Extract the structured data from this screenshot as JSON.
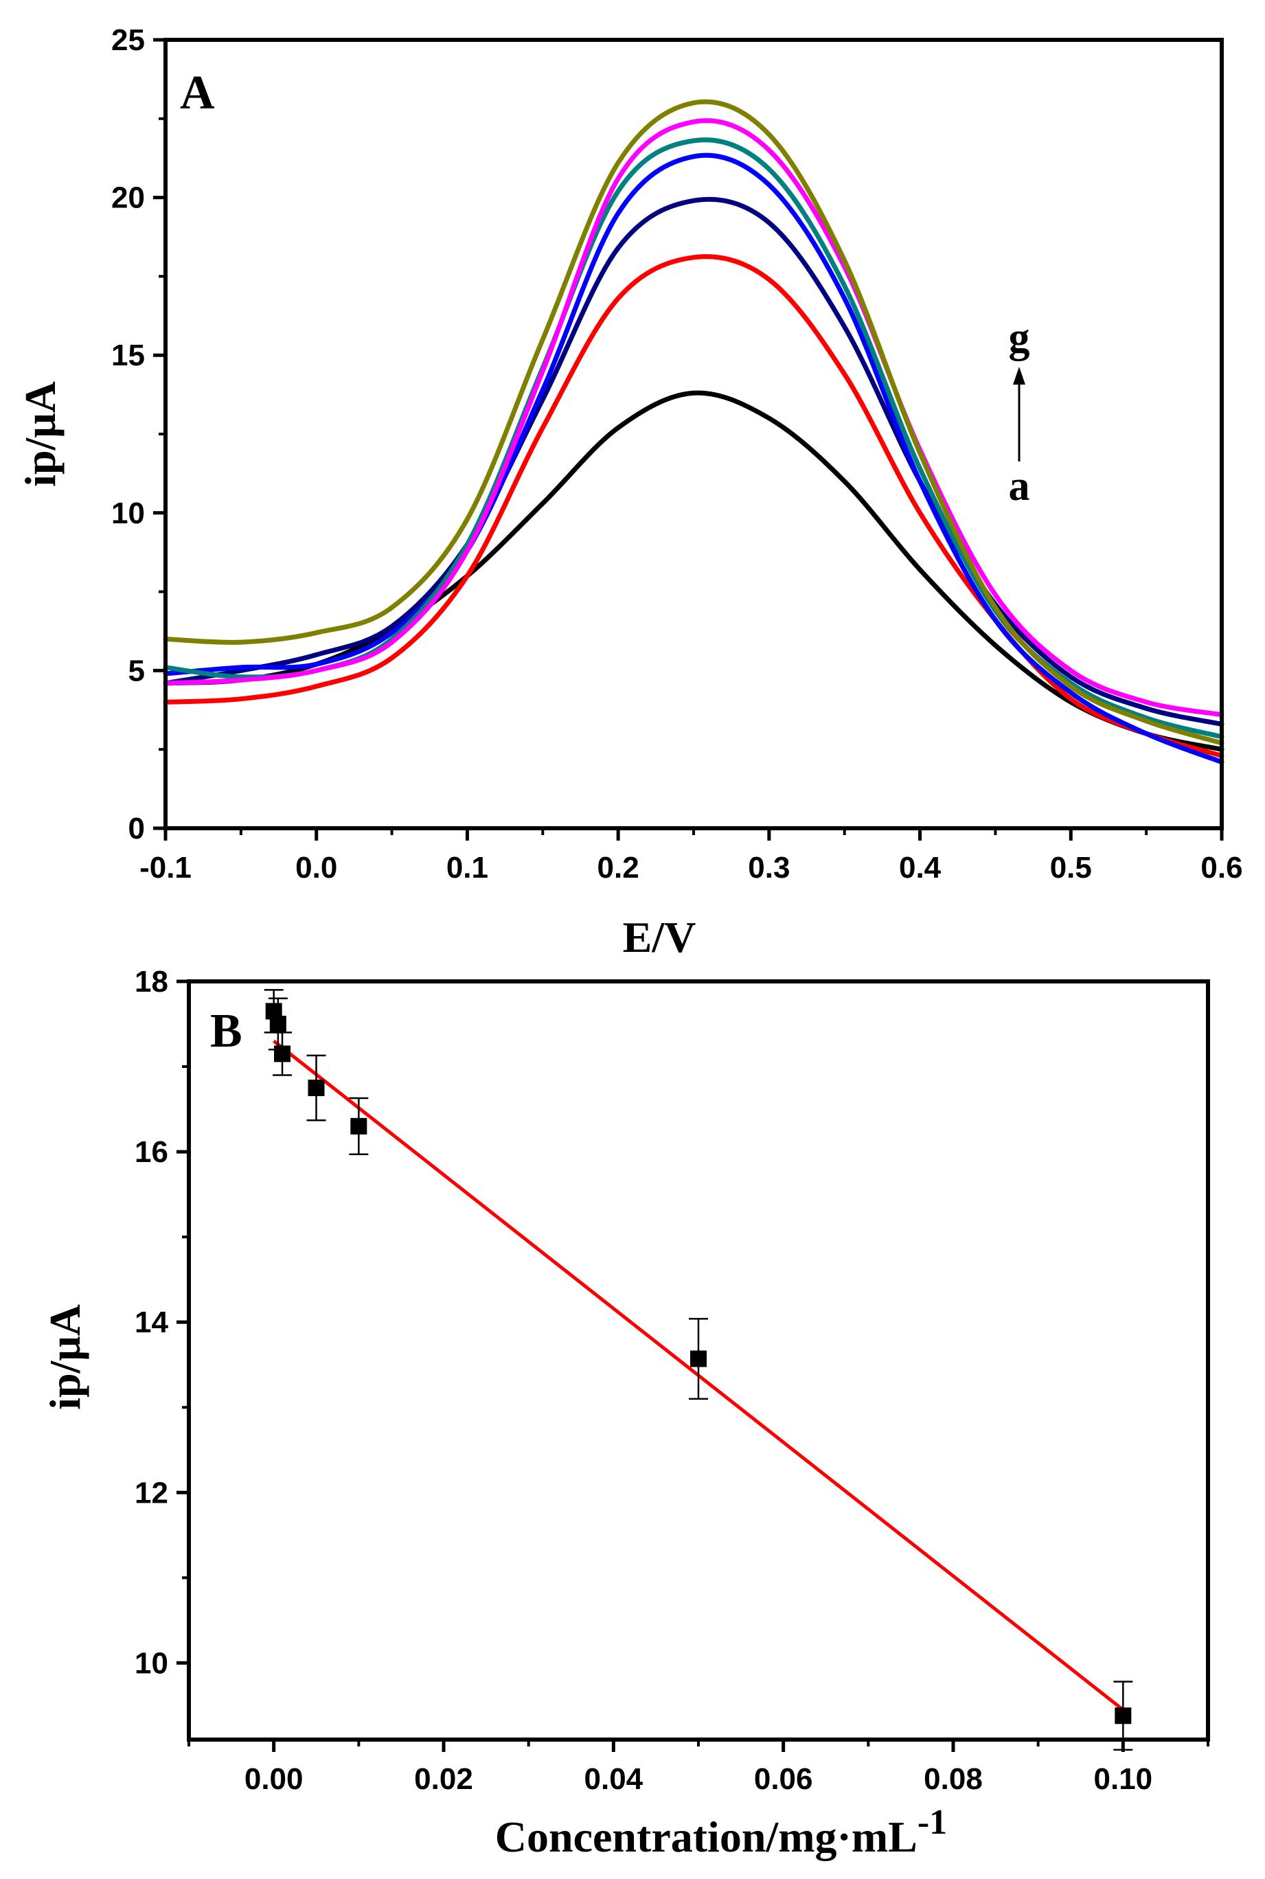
{
  "chart_data": [
    {
      "panel_label": "A",
      "type": "line",
      "xlabel": "E/V",
      "ylabel": "ip/μA",
      "xlim": [
        -0.1,
        0.6
      ],
      "ylim": [
        0,
        25
      ],
      "xticks": [
        "-0.1",
        "0.0",
        "0.1",
        "0.2",
        "0.3",
        "0.4",
        "0.5",
        "0.6"
      ],
      "yticks": [
        "0",
        "5",
        "10",
        "15",
        "20",
        "25"
      ],
      "grid": false,
      "annotations": {
        "top": "g",
        "bottom": "a"
      },
      "series": [
        {
          "color": "#000000",
          "x": [
            -0.1,
            -0.05,
            0.0,
            0.05,
            0.1,
            0.15,
            0.2,
            0.25,
            0.3,
            0.35,
            0.4,
            0.45,
            0.5,
            0.55,
            0.6
          ],
          "y": [
            4.6,
            4.7,
            5.2,
            6.3,
            8.0,
            10.3,
            12.7,
            13.8,
            13.0,
            11.0,
            8.2,
            5.8,
            4.0,
            3.0,
            2.5
          ]
        },
        {
          "color": "#ff0000",
          "x": [
            -0.1,
            -0.05,
            0.0,
            0.05,
            0.1,
            0.15,
            0.2,
            0.25,
            0.3,
            0.35,
            0.4,
            0.45,
            0.5,
            0.55,
            0.6
          ],
          "y": [
            4.0,
            4.1,
            4.5,
            5.4,
            8.0,
            12.7,
            16.8,
            18.1,
            17.4,
            14.4,
            10.0,
            6.6,
            4.1,
            3.0,
            2.3
          ]
        },
        {
          "color": "#000080",
          "x": [
            -0.1,
            -0.05,
            0.0,
            0.05,
            0.1,
            0.15,
            0.2,
            0.25,
            0.3,
            0.35,
            0.4,
            0.45,
            0.5,
            0.55,
            0.6
          ],
          "y": [
            4.6,
            5.0,
            5.5,
            6.4,
            9.0,
            13.6,
            18.4,
            19.9,
            19.2,
            15.9,
            11.0,
            7.1,
            4.8,
            3.8,
            3.3
          ]
        },
        {
          "color": "#0000ff",
          "x": [
            -0.1,
            -0.05,
            0.0,
            0.05,
            0.1,
            0.15,
            0.2,
            0.25,
            0.3,
            0.35,
            0.4,
            0.45,
            0.5,
            0.55,
            0.6
          ],
          "y": [
            4.9,
            5.1,
            5.2,
            6.2,
            8.8,
            13.9,
            19.5,
            21.3,
            20.4,
            16.8,
            11.0,
            6.6,
            4.3,
            3.0,
            2.1
          ]
        },
        {
          "color": "#008080",
          "x": [
            -0.1,
            -0.05,
            0.0,
            0.05,
            0.1,
            0.15,
            0.2,
            0.25,
            0.3,
            0.35,
            0.4,
            0.45,
            0.5,
            0.55,
            0.6
          ],
          "y": [
            5.1,
            4.8,
            5.0,
            6.0,
            9.0,
            14.6,
            20.2,
            21.8,
            20.9,
            17.2,
            11.4,
            6.9,
            4.6,
            3.5,
            2.9
          ]
        },
        {
          "color": "#ff00ff",
          "x": [
            -0.1,
            -0.05,
            0.0,
            0.05,
            0.1,
            0.15,
            0.2,
            0.25,
            0.3,
            0.35,
            0.4,
            0.45,
            0.5,
            0.55,
            0.6
          ],
          "y": [
            4.6,
            4.7,
            5.0,
            5.9,
            8.8,
            14.5,
            20.6,
            22.4,
            21.5,
            17.8,
            12.0,
            7.4,
            5.0,
            4.0,
            3.6
          ]
        },
        {
          "color": "#808000",
          "x": [
            -0.1,
            -0.05,
            0.0,
            0.05,
            0.1,
            0.15,
            0.2,
            0.25,
            0.3,
            0.35,
            0.4,
            0.45,
            0.5,
            0.55,
            0.6
          ],
          "y": [
            6.0,
            5.9,
            6.2,
            7.0,
            9.8,
            15.5,
            21.1,
            23.0,
            22.0,
            18.0,
            11.9,
            7.0,
            4.5,
            3.4,
            2.7
          ]
        }
      ]
    },
    {
      "panel_label": "B",
      "type": "scatter",
      "xlabel": "Concentration/mg·mL",
      "xlabel_superscript": "-1",
      "ylabel": "ip/μA",
      "xlim": [
        -0.01,
        0.11
      ],
      "ylim": [
        9.1,
        18
      ],
      "xticks": [
        "0.00",
        "0.02",
        "0.04",
        "0.06",
        "0.08",
        "0.10"
      ],
      "yticks": [
        "10",
        "12",
        "14",
        "16",
        "18"
      ],
      "grid": false,
      "points": [
        {
          "x": 0.0,
          "y": 17.65,
          "err": 0.25
        },
        {
          "x": 0.0005,
          "y": 17.5,
          "err": 0.3
        },
        {
          "x": 0.001,
          "y": 17.15,
          "err": 0.25
        },
        {
          "x": 0.005,
          "y": 16.75,
          "err": 0.38
        },
        {
          "x": 0.01,
          "y": 16.3,
          "err": 0.33
        },
        {
          "x": 0.05,
          "y": 13.57,
          "err": 0.47
        },
        {
          "x": 0.1,
          "y": 9.38,
          "err": 0.4
        }
      ],
      "fit_line": {
        "color": "#ff0000",
        "x": [
          0.0,
          0.1
        ],
        "y": [
          17.3,
          9.45
        ]
      }
    }
  ]
}
